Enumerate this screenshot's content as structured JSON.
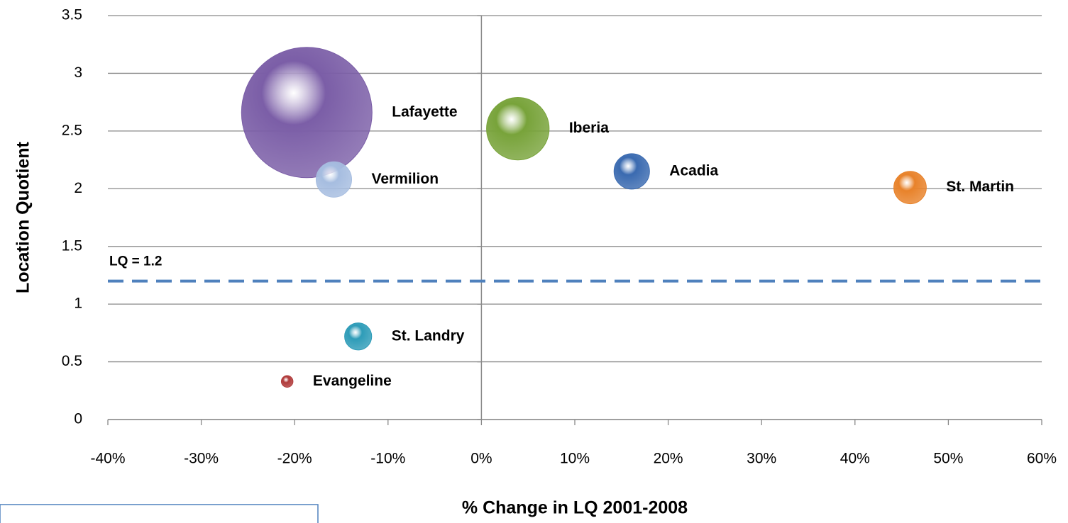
{
  "chart_data": {
    "type": "bubble",
    "x_label": "% Change in LQ 2001-2008",
    "y_label": "Location Quotient",
    "xlim": [
      -40,
      60
    ],
    "xticks": [
      {
        "value": -40,
        "label": "-40%"
      },
      {
        "value": -30,
        "label": "-30%"
      },
      {
        "value": -20,
        "label": "-20%"
      },
      {
        "value": -10,
        "label": "-10%"
      },
      {
        "value": 0,
        "label": "0%"
      },
      {
        "value": 10,
        "label": "10%"
      },
      {
        "value": 20,
        "label": "20%"
      },
      {
        "value": 30,
        "label": "30%"
      },
      {
        "value": 40,
        "label": "40%"
      },
      {
        "value": 50,
        "label": "50%"
      },
      {
        "value": 60,
        "label": "60%"
      }
    ],
    "ylim": [
      0,
      3.5
    ],
    "yticks": [
      0,
      0.5,
      1,
      1.5,
      2,
      2.5,
      3,
      3.5
    ],
    "grid": true,
    "reference_line": {
      "value": 1.2,
      "label": "LQ = 1.2",
      "color": "#4f81bd"
    },
    "series": [
      {
        "name": "Lafayette",
        "color": "#7b5ea7",
        "x": [
          -18.7
        ],
        "values": [
          2.66
        ],
        "sizes": [
          100
        ]
      },
      {
        "name": "Iberia",
        "color": "#78a33a",
        "x": [
          3.9
        ],
        "values": [
          2.52
        ],
        "sizes": [
          23
        ]
      },
      {
        "name": "Vermilion",
        "color": "#a6bde0",
        "x": [
          -15.8
        ],
        "values": [
          2.08
        ],
        "sizes": [
          7.4
        ]
      },
      {
        "name": "Acadia",
        "color": "#3a6ab0",
        "x": [
          16.1
        ],
        "values": [
          2.15
        ],
        "sizes": [
          7.4
        ]
      },
      {
        "name": "St. Martin",
        "color": "#e8822a",
        "x": [
          45.9
        ],
        "values": [
          2.01
        ],
        "sizes": [
          6.2
        ]
      },
      {
        "name": "St. Landry",
        "color": "#2e9cb8",
        "x": [
          -13.2
        ],
        "values": [
          0.72
        ],
        "sizes": [
          4.3
        ]
      },
      {
        "name": "Evangeline",
        "color": "#b03a3a",
        "x": [
          -20.8
        ],
        "values": [
          0.33
        ],
        "sizes": [
          0.8
        ]
      }
    ]
  }
}
